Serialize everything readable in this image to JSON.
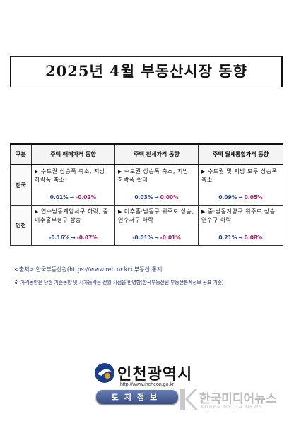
{
  "title": "2025년 4월 부동산시장 동향",
  "table": {
    "headers": [
      "구분",
      "주택 매매가격 동향",
      "주택 전세가격 동향",
      "주택 월세통합가격 동향"
    ],
    "rows": [
      {
        "region": "전국",
        "cells": [
          {
            "text": "수도권 상승폭 축소, 지방 하락폭 축소",
            "from": "0.01%",
            "arrow": "→",
            "to": "-0.02%"
          },
          {
            "text": "수도권 상승폭 축소, 지방 하락폭 확대",
            "from": "0.03%",
            "arrow": "→",
            "to": "0.00%"
          },
          {
            "text": "수도권 및 지방 모두 상승폭 축소",
            "from": "0.09%",
            "arrow": "→",
            "to": "0.05%"
          }
        ]
      },
      {
        "region": "인천",
        "cells": [
          {
            "text": "연수남동계양서구 하락, 중미추홀부평구 상승",
            "from": "-0.16%",
            "arrow": "→",
            "to": "-0.07%"
          },
          {
            "text": "미추홀·남동구 위주로 상승, 연수서구 하락",
            "from": "-0.01%",
            "arrow": "→",
            "to": "-0.01%"
          },
          {
            "text": "중·남동계양구 위주로 상승, 연수구 하락",
            "from": "0.21%",
            "arrow": "→",
            "to": "0.08%"
          }
        ]
      }
    ]
  },
  "source": "<출처> 한국부동산원(https://www.reb.or.kr) 부동산 통계",
  "note": "※ 가격동향은 당현 기준동향 및 시가등락은 전월 시점을 반영함(한국부동산원 부동산통계정보 공표 기준)",
  "logo": {
    "name": "인천광역시",
    "url": "http://www.incheon.go.kr",
    "bar": "토지정보"
  },
  "watermark": {
    "text": "한국미디어뉴스",
    "sub": "KOREA MEDIA NEWS"
  },
  "colors": {
    "from": "#1e3a8c",
    "to": "#b5145b",
    "bar": "#3a4f86"
  }
}
